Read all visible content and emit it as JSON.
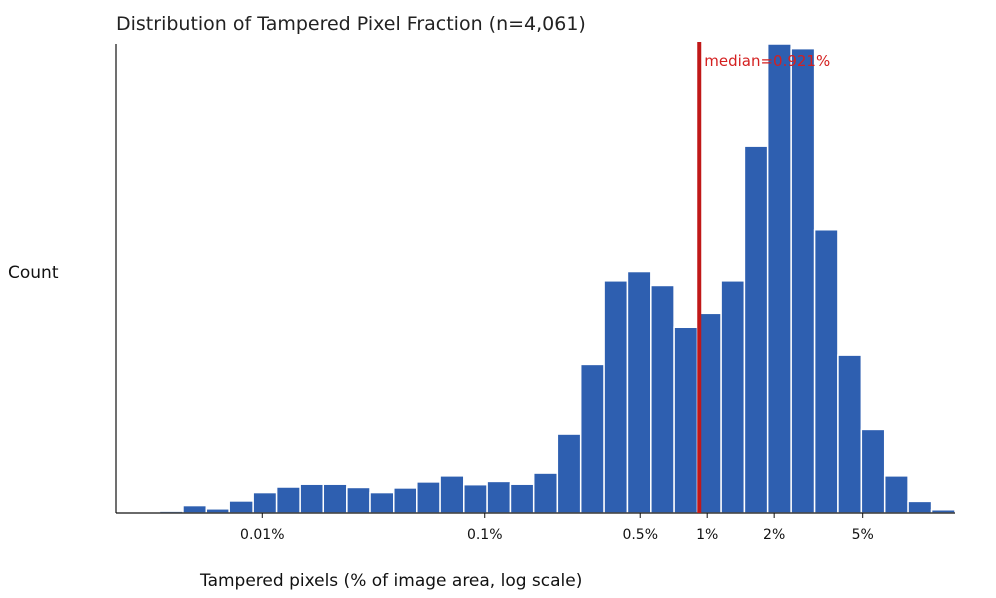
{
  "chart_data": {
    "type": "bar",
    "title": "Distribution of Tampered Pixel Fraction (n=4,061)",
    "xlabel": "Tampered pixels (% of image area, log scale)",
    "ylabel": "Count",
    "x_scale": "log",
    "x_unit": "% of image area",
    "xlim": [
      0.0022,
      13
    ],
    "xticks": [
      {
        "value": 0.01,
        "label": "0.01%"
      },
      {
        "value": 0.1,
        "label": "0.1%"
      },
      {
        "value": 0.5,
        "label": "0.5%"
      },
      {
        "value": 1,
        "label": "1%"
      },
      {
        "value": 2,
        "label": "2%"
      },
      {
        "value": 5,
        "label": "5%"
      }
    ],
    "bin_edges": [
      0.00345,
      0.0044,
      0.0056,
      0.0071,
      0.0091,
      0.0116,
      0.0148,
      0.0188,
      0.024,
      0.0305,
      0.039,
      0.0495,
      0.063,
      0.0805,
      0.1025,
      0.1305,
      0.166,
      0.212,
      0.27,
      0.344,
      0.438,
      0.558,
      0.71,
      0.905,
      1.155,
      1.47,
      1.87,
      2.385,
      3.04,
      3.87,
      4.93,
      6.28,
      8.0,
      10.2,
      13.0
    ],
    "values": [
      0.4,
      1.6,
      0.9,
      2.6,
      4.4,
      5.6,
      6.2,
      6.2,
      5.5,
      4.4,
      5.4,
      6.7,
      8.0,
      6.1,
      6.8,
      6.2,
      8.6,
      17.0,
      32.0,
      50.0,
      52.0,
      49.0,
      40.0,
      43.0,
      50.0,
      79.0,
      101.0,
      100.0,
      61.0,
      34.0,
      18.0,
      8.0,
      2.5,
      0.7,
      1.3
    ],
    "ylim": [
      0,
      101
    ],
    "grid": false,
    "median": {
      "value": 0.921,
      "label": "median=0.921%",
      "color": "#c01818"
    },
    "bar_color": "#2e5fb0"
  }
}
